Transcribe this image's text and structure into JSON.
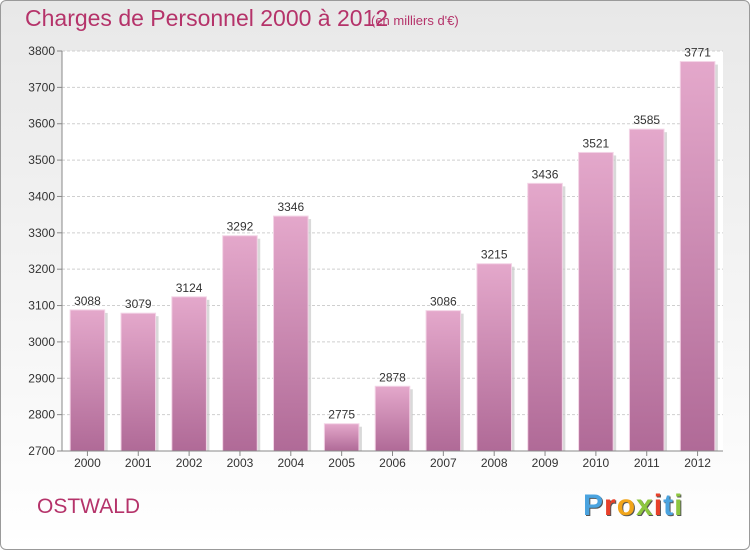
{
  "header": {
    "title": "Charges de Personnel 2000 à 2012",
    "subtitle": "(en milliers d'€)"
  },
  "footer": {
    "commune": "OSTWALD",
    "brand": "Proxiti",
    "brand_colors": [
      "#4aa3df",
      "#e8402a",
      "#f2a51a",
      "#8dc63f",
      "#e8402a",
      "#4aa3df",
      "#8dc63f"
    ]
  },
  "colors": {
    "title": "#b5336a",
    "bar_top": "#e4a8cb",
    "bar_bottom": "#b06a97"
  },
  "chart_data": {
    "type": "bar",
    "title": "Charges de Personnel 2000 à 2012",
    "subtitle": "(en milliers d'€)",
    "categories": [
      "2000",
      "2001",
      "2002",
      "2003",
      "2004",
      "2005",
      "2006",
      "2007",
      "2008",
      "2009",
      "2010",
      "2011",
      "2012"
    ],
    "values": [
      3088,
      3079,
      3124,
      3292,
      3346,
      2775,
      2878,
      3086,
      3215,
      3436,
      3521,
      3585,
      3771
    ],
    "ylim": [
      2700,
      3800
    ],
    "yticks": [
      2700,
      2800,
      2900,
      3000,
      3100,
      3200,
      3300,
      3400,
      3500,
      3600,
      3700,
      3800
    ],
    "grid": true,
    "legend": "none"
  }
}
